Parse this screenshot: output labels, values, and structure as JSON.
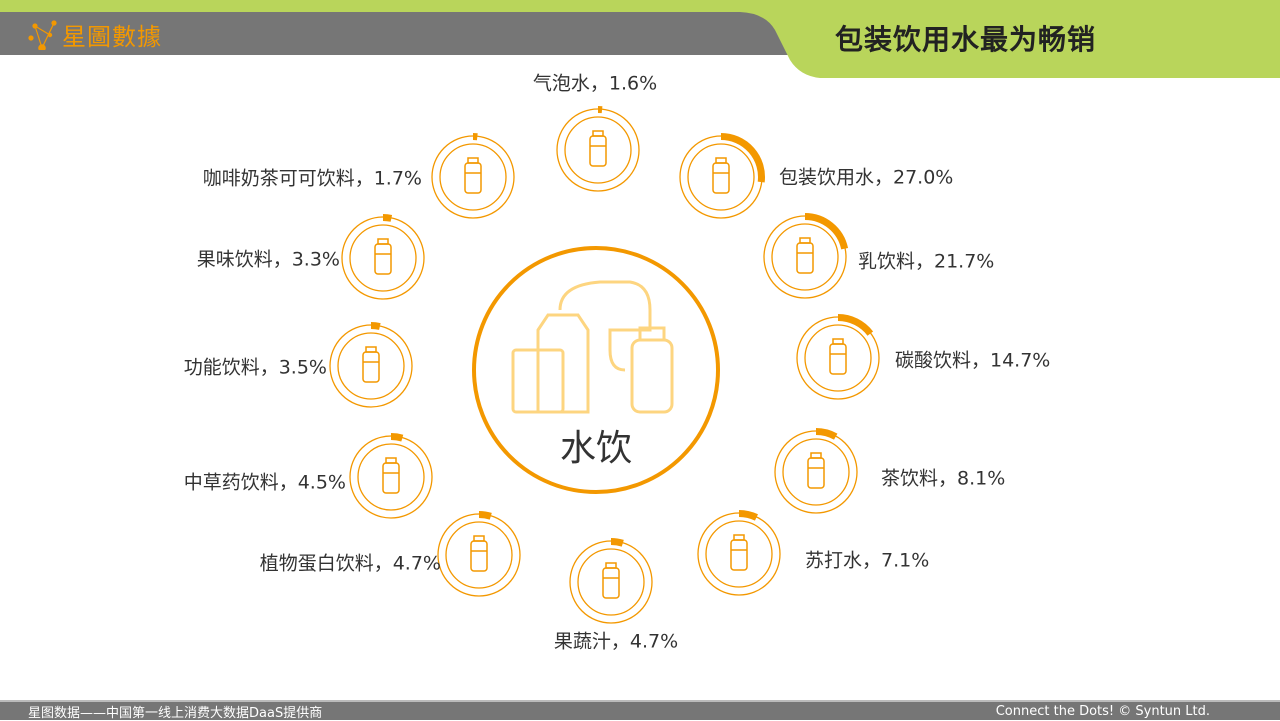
{
  "header": {
    "logo_text": "星圖數據",
    "title": "包装饮用水最为畅销"
  },
  "center": {
    "label": "水饮"
  },
  "colors": {
    "accent": "#f39800",
    "light": "#fdd580",
    "green": "#b9d55b",
    "gray": "#767676"
  },
  "items": [
    {
      "name": "气泡水",
      "pct": 1.6,
      "label": "气泡水，1.6%",
      "icon": "sparkling-bottle-icon"
    },
    {
      "name": "包装饮用水",
      "pct": 27.0,
      "label": "包装饮用水，27.0%",
      "icon": "water-bottle-icon"
    },
    {
      "name": "乳饮料",
      "pct": 21.7,
      "label": "乳饮料，21.7%",
      "icon": "milk-carton-icon"
    },
    {
      "name": "碳酸饮料",
      "pct": 14.7,
      "label": "碳酸饮料，14.7%",
      "icon": "soda-can-icon"
    },
    {
      "name": "茶饮料",
      "pct": 8.1,
      "label": "茶饮料，8.1%",
      "icon": "tea-cup-icon"
    },
    {
      "name": "苏打水",
      "pct": 7.1,
      "label": "苏打水，7.1%",
      "icon": "glass-bottle-icon"
    },
    {
      "name": "果蔬汁",
      "pct": 4.7,
      "label": "果蔬汁，4.7%",
      "icon": "juice-carton-icon"
    },
    {
      "name": "植物蛋白饮料",
      "pct": 4.7,
      "label": "植物蛋白饮料，4.7%",
      "icon": "small-bottle-icon"
    },
    {
      "name": "中草药饮料",
      "pct": 4.5,
      "label": "中草药饮料，4.5%",
      "icon": "herbal-jar-icon"
    },
    {
      "name": "功能饮料",
      "pct": 3.5,
      "label": "功能饮料，3.5%",
      "icon": "sports-bottle-icon"
    },
    {
      "name": "果味饮料",
      "pct": 3.3,
      "label": "果味饮料，3.3%",
      "icon": "fruit-drink-box-icon"
    },
    {
      "name": "咖啡奶茶可可饮料",
      "pct": 1.7,
      "label": "咖啡奶茶可可饮料，1.7%",
      "icon": "coffee-pitcher-icon"
    }
  ],
  "footer": {
    "left": "星图数据——中国第一线上消费大数据DaaS提供商",
    "right": "Connect the Dots! © Syntun Ltd."
  }
}
